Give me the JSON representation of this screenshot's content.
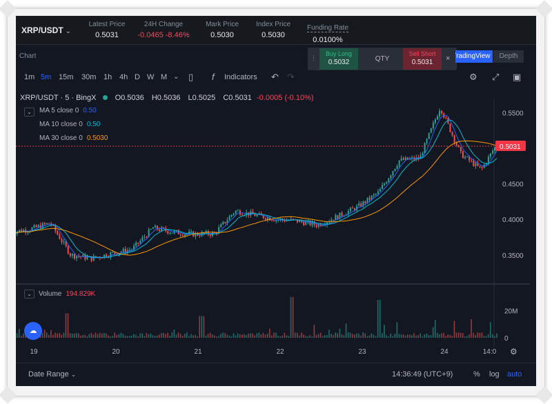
{
  "ticker": {
    "symbol": "XRP/USDT",
    "stats": [
      {
        "label": "Latest Price",
        "value": "0.5031",
        "color": "white"
      },
      {
        "label": "24H Change",
        "value": "-0.0465 -8.46%",
        "color": "red"
      },
      {
        "label": "Mark Price",
        "value": "0.5030",
        "color": "white"
      },
      {
        "label": "Index Price",
        "value": "0.5030",
        "color": "white"
      },
      {
        "label": "Funding Rate",
        "value": "0.0100%",
        "color": "white"
      }
    ]
  },
  "chart_label": "Chart",
  "order_widget": {
    "buy_label": "Buy Long",
    "buy_price": "0.5032",
    "qty_label": "QTY",
    "sell_label": "Sell Short",
    "sell_price": "0.5031",
    "close": "×"
  },
  "tabs": {
    "tradingview": "TradingView",
    "depth": "Depth"
  },
  "toolbar": {
    "timeframes": [
      "1m",
      "5m",
      "15m",
      "30m",
      "1h",
      "4h",
      "D",
      "W",
      "M"
    ],
    "active_timeframe": "5m",
    "indicators_label": "Indicators"
  },
  "legend": {
    "title": "XRP/USDT · 5 · BingX",
    "open": "O0.5036",
    "high": "H0.5036",
    "low": "L0.5025",
    "close": "C0.5031",
    "change": "-0.0005 (-0.10%)"
  },
  "ma": [
    {
      "label": "MA 5 close 0",
      "value": "0.50",
      "color": "#2962ff"
    },
    {
      "label": "MA 10 close 0",
      "value": "0.50",
      "color": "#00bcd4"
    },
    {
      "label": "MA 30 close 0",
      "value": "0.5030",
      "color": "#ff9800"
    }
  ],
  "volume": {
    "label": "Volume",
    "value": "194.829K"
  },
  "colors": {
    "up": "#26a69a",
    "down": "#ef5350",
    "ma5": "#2962ff",
    "ma10": "#00bcd4",
    "ma30": "#ff9800",
    "last_price": "#f23645"
  },
  "chart_data": {
    "type": "candlestick",
    "price_axis": {
      "ticks": [
        0.55,
        0.45,
        0.4,
        0.35
      ],
      "tick_labels": [
        "0.5500",
        "0.4500",
        "0.4000",
        "0.3500"
      ],
      "range": [
        0.31,
        0.57
      ]
    },
    "volume_axis": {
      "tick_labels": [
        "20M",
        "0"
      ],
      "ticks": [
        20,
        0
      ],
      "range": [
        0,
        34
      ]
    },
    "x_axis": {
      "tick_labels": [
        "19",
        "20",
        "21",
        "22",
        "23",
        "24",
        "14:0"
      ]
    },
    "last_price": 0.5031,
    "last_price_label": "0.5031",
    "price_path_days": [
      18.7,
      18.95,
      19.2,
      19.45,
      19.7,
      19.95,
      20.2,
      20.45,
      20.7,
      20.95,
      21.2,
      21.45,
      21.7,
      21.95,
      22.2,
      22.45,
      22.7,
      22.95,
      23.2,
      23.45,
      23.7,
      23.95,
      24.2,
      24.45,
      24.65
    ],
    "price_path_values": [
      0.382,
      0.386,
      0.395,
      0.35,
      0.345,
      0.352,
      0.358,
      0.388,
      0.382,
      0.379,
      0.38,
      0.412,
      0.406,
      0.4,
      0.398,
      0.392,
      0.404,
      0.418,
      0.438,
      0.483,
      0.486,
      0.558,
      0.492,
      0.47,
      0.508
    ]
  },
  "bottom": {
    "date_range": "Date Range",
    "clock": "14:36:49 (UTC+9)",
    "pct": "%",
    "log": "log",
    "auto": "auto"
  }
}
